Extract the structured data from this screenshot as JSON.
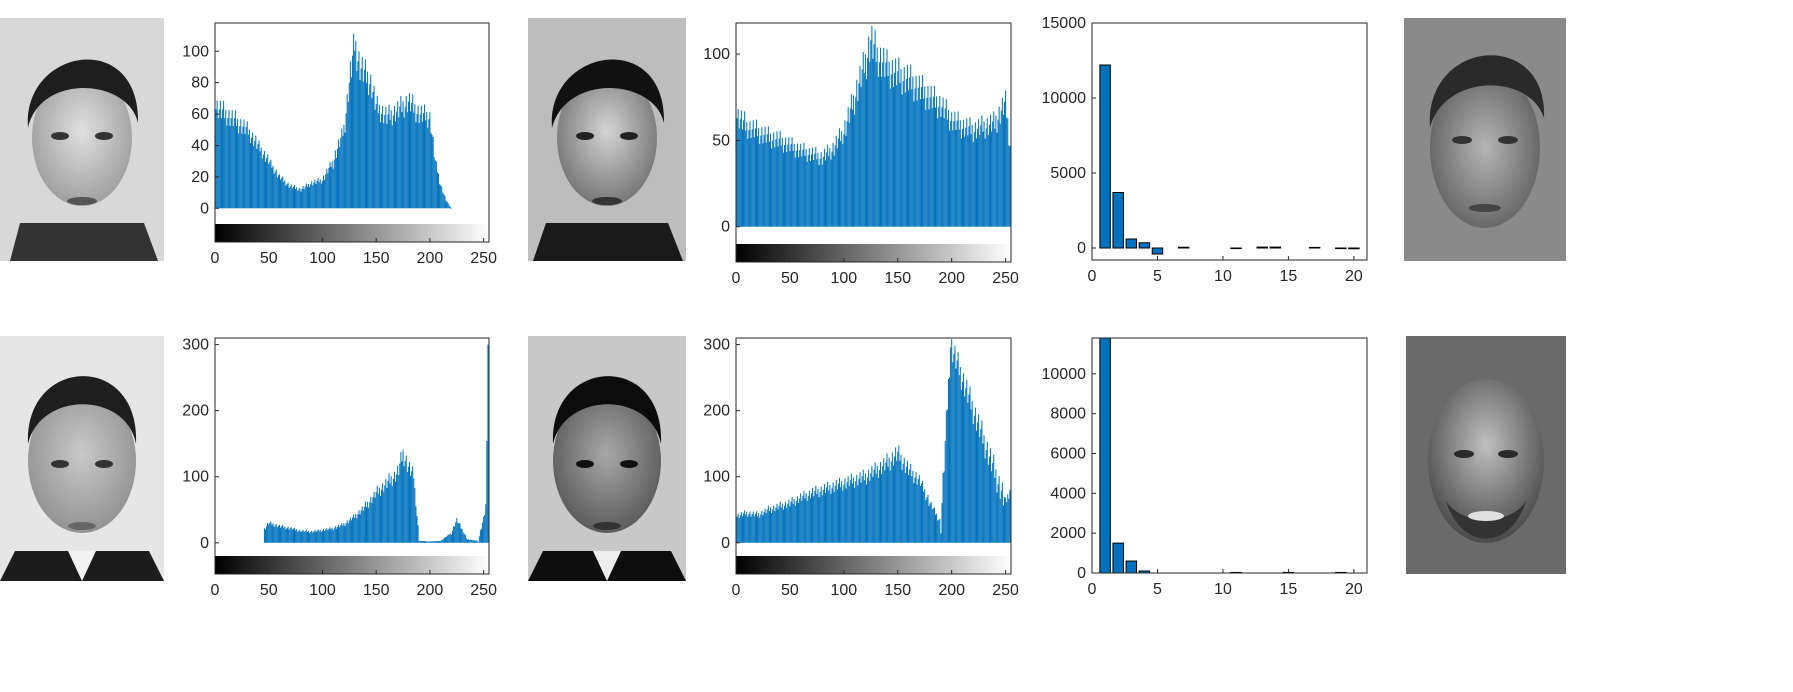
{
  "colors": {
    "bar": "#0072BD",
    "axis": "#262626",
    "frame": "#262626"
  },
  "photos": [
    {
      "name": "face-photo-row1-original",
      "icon": "face-photo-young-man-bright"
    },
    {
      "name": "face-photo-row1-equalized",
      "icon": "face-photo-young-man-contrast"
    },
    {
      "name": "face-photo-row1-match",
      "icon": "face-photo-matched-face"
    },
    {
      "name": "face-photo-row2-original",
      "icon": "face-photo-bearded-man"
    },
    {
      "name": "face-photo-row2-equalized",
      "icon": "face-photo-bearded-man-contrast"
    },
    {
      "name": "face-photo-row2-match",
      "icon": "face-photo-smiling-man"
    }
  ],
  "chart_data": [
    {
      "id": "r1-hist-original",
      "type": "bar",
      "title": "",
      "xlabel": "",
      "ylabel": "",
      "xlim": [
        0,
        255
      ],
      "ylim": [
        -10,
        118
      ],
      "xticks": [
        "0",
        "50",
        "100",
        "150",
        "200",
        "250"
      ],
      "yticks": [
        "0",
        "20",
        "40",
        "60",
        "80",
        "100"
      ],
      "grayscale_colorbar": true,
      "x": [
        0,
        10,
        20,
        30,
        40,
        50,
        60,
        70,
        80,
        90,
        100,
        110,
        120,
        125,
        130,
        135,
        140,
        145,
        150,
        160,
        170,
        180,
        190,
        200,
        205,
        210,
        215,
        220
      ],
      "values": [
        65,
        60,
        55,
        50,
        40,
        30,
        20,
        14,
        12,
        16,
        18,
        30,
        50,
        80,
        105,
        90,
        85,
        80,
        65,
        58,
        62,
        68,
        60,
        58,
        30,
        15,
        5,
        0
      ]
    },
    {
      "id": "r1-hist-equalized",
      "type": "bar",
      "title": "",
      "xlabel": "",
      "ylabel": "",
      "xlim": [
        0,
        255
      ],
      "ylim": [
        -10,
        118
      ],
      "xticks": [
        "0",
        "50",
        "100",
        "150",
        "200",
        "250"
      ],
      "yticks": [
        "0",
        "50",
        "100"
      ],
      "grayscale_colorbar": true,
      "x": [
        0,
        10,
        20,
        30,
        40,
        50,
        60,
        70,
        80,
        90,
        100,
        110,
        120,
        125,
        130,
        140,
        150,
        160,
        170,
        180,
        190,
        200,
        210,
        220,
        230,
        240,
        250,
        255
      ],
      "values": [
        65,
        58,
        55,
        52,
        50,
        47,
        44,
        42,
        40,
        45,
        55,
        75,
        95,
        108,
        100,
        92,
        88,
        85,
        80,
        75,
        70,
        62,
        58,
        56,
        58,
        60,
        72,
        42
      ]
    },
    {
      "id": "r1-bar-scores",
      "type": "bar",
      "title": "",
      "xlabel": "",
      "ylabel": "",
      "xlim": [
        0,
        21
      ],
      "ylim": [
        -800,
        15000
      ],
      "xticks": [
        "0",
        "5",
        "10",
        "15",
        "20"
      ],
      "yticks": [
        "0",
        "5000",
        "10000",
        "15000"
      ],
      "x": [
        1,
        2,
        3,
        4,
        5,
        7,
        11,
        13,
        14,
        17,
        19,
        20
      ],
      "values": [
        12200,
        3700,
        600,
        350,
        -400,
        50,
        -40,
        60,
        60,
        40,
        -40,
        -50
      ]
    },
    {
      "id": "r2-hist-original",
      "type": "bar",
      "title": "",
      "xlabel": "",
      "ylabel": "",
      "xlim": [
        0,
        255
      ],
      "ylim": [
        -20,
        310
      ],
      "xticks": [
        "0",
        "50",
        "100",
        "150",
        "200",
        "250"
      ],
      "yticks": [
        "0",
        "100",
        "200",
        "300"
      ],
      "grayscale_colorbar": true,
      "x": [
        46,
        50,
        60,
        70,
        80,
        90,
        100,
        110,
        120,
        130,
        140,
        150,
        160,
        170,
        175,
        180,
        185,
        190,
        200,
        210,
        220,
        225,
        230,
        235,
        245,
        252,
        254
      ],
      "values": [
        20,
        30,
        25,
        22,
        18,
        17,
        19,
        22,
        28,
        40,
        55,
        75,
        90,
        105,
        135,
        115,
        100,
        3,
        2,
        3,
        15,
        35,
        20,
        5,
        3,
        50,
        300
      ]
    },
    {
      "id": "r2-hist-equalized",
      "type": "bar",
      "title": "",
      "xlabel": "",
      "ylabel": "",
      "xlim": [
        0,
        255
      ],
      "ylim": [
        -20,
        310
      ],
      "xticks": [
        "0",
        "50",
        "100",
        "150",
        "200",
        "250"
      ],
      "yticks": [
        "0",
        "100",
        "200",
        "300"
      ],
      "grayscale_colorbar": true,
      "x": [
        0,
        10,
        20,
        30,
        40,
        50,
        60,
        70,
        80,
        90,
        100,
        110,
        120,
        130,
        140,
        150,
        160,
        170,
        180,
        190,
        199,
        250,
        254
      ],
      "values": [
        40,
        45,
        42,
        50,
        55,
        60,
        68,
        75,
        80,
        85,
        90,
        95,
        100,
        110,
        120,
        135,
        110,
        95,
        60,
        30,
        300,
        60,
        80
      ]
    },
    {
      "id": "r2-bar-scores",
      "type": "bar",
      "title": "",
      "xlabel": "",
      "ylabel": "",
      "xlim": [
        0,
        21
      ],
      "ylim": [
        0,
        11800
      ],
      "xticks": [
        "0",
        "5",
        "10",
        "15",
        "20"
      ],
      "yticks": [
        "0",
        "2000",
        "4000",
        "6000",
        "8000",
        "10000"
      ],
      "x": [
        1,
        2,
        3,
        4,
        11,
        15,
        19
      ],
      "values": [
        11800,
        1500,
        600,
        100,
        30,
        30,
        30
      ]
    }
  ]
}
